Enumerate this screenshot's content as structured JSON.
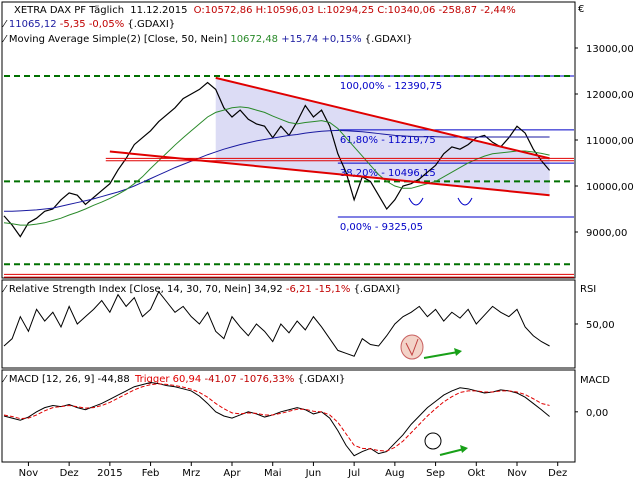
{
  "main_panel": {
    "header": {
      "instrument": "XETRA DAX PF",
      "period": "Täglich",
      "date": "11.12.2015",
      "open": "O:10572,86",
      "high": "H:10596,03",
      "low": "L:10294,25",
      "close": "C:10340,06",
      "change": "-258,87",
      "change_pct": "-2,44%"
    },
    "ma200": {
      "label": "Moving Average Simple [Close, 200, Nein]",
      "value": "11065,12",
      "change": "-5,35",
      "change_pct": "-0,05%",
      "symbol": "{.GDAXI}"
    },
    "ma50": {
      "label": "Moving Average Simple(2) [Close, 50, Nein]",
      "value": "10672,48",
      "change": "+15,74",
      "change_pct": "+0,15%",
      "symbol": "{.GDAXI}"
    },
    "currency": "€",
    "fib_labels": [
      "100,00% - 12390,75",
      "61,80% - 11219,75",
      "38,20% - 10496,15",
      "0,00% - 9325,05"
    ]
  },
  "rsi_panel": {
    "label": "Relative Strength Index [Close, 14, 30, 70, Nein]",
    "value": "34,92",
    "change": "-6,21",
    "change_pct": "-15,1%",
    "symbol": "{.GDAXI}",
    "tag": "RSI"
  },
  "macd_panel": {
    "label": "MACD [12, 26, 9]",
    "value": "-44,88",
    "trigger_label": "Trigger",
    "trigger_value": "60,94",
    "change": "-41,07",
    "change_pct": "-1076,33%",
    "symbol": "{.GDAXI}",
    "tag": "MACD"
  },
  "colors": {
    "price": "#000000",
    "ma200": "#1a1aa0",
    "ma50": "#2a8a2a",
    "channel": "#e00000",
    "channel_fill": "#dcdcf5",
    "fib": "#0000c8",
    "support": "#007000",
    "macd_trigger": "#e00000",
    "annotation_arrow": "#18a018"
  },
  "chart_data": [
    {
      "type": "line",
      "panel": "price",
      "ylim": [
        8000,
        14000
      ],
      "y_ticks": [
        "9000,00",
        "10000,00",
        "11000,00",
        "12000,00",
        "13000,00"
      ],
      "x_ticks": [
        "Nov",
        "Dez",
        "2015",
        "Feb",
        "Mrz",
        "Apr",
        "Mai",
        "Jun",
        "Jul",
        "Aug",
        "Sep",
        "Okt",
        "Nov",
        "Dez"
      ],
      "x_range": [
        0,
        14
      ],
      "series": [
        {
          "x": [
            0,
            0.2,
            0.4,
            0.6,
            0.8,
            1,
            1.2,
            1.4,
            1.6,
            1.8,
            2,
            2.2,
            2.4,
            2.6,
            2.8,
            3,
            3.2,
            3.4,
            3.6,
            3.8,
            4,
            4.2,
            4.4,
            4.6,
            4.8,
            5,
            5.2,
            5.4,
            5.6,
            5.8,
            6,
            6.2,
            6.4,
            6.6,
            6.8,
            7,
            7.2,
            7.4,
            7.6,
            7.8,
            8,
            8.2,
            8.4,
            8.6,
            8.8,
            9,
            9.2,
            9.4,
            9.6,
            9.8,
            10,
            10.2,
            10.4,
            10.6,
            10.8,
            11,
            11.2,
            11.4,
            11.6,
            11.8,
            12,
            12.2,
            12.4,
            12.6,
            12.8,
            13,
            13.2,
            13.4
          ],
          "values": [
            9350,
            9150,
            8900,
            9200,
            9300,
            9450,
            9500,
            9700,
            9850,
            9800,
            9600,
            9750,
            9900,
            10050,
            10350,
            10600,
            10900,
            11050,
            11200,
            11400,
            11550,
            11700,
            11900,
            12000,
            12100,
            12250,
            12100,
            11700,
            11500,
            11650,
            11450,
            11350,
            11300,
            11050,
            11300,
            11100,
            11400,
            11750,
            11500,
            11650,
            11300,
            10700,
            10300,
            9700,
            10200,
            10100,
            9800,
            9500,
            9700,
            10000,
            10050,
            10150,
            10300,
            10450,
            10700,
            10850,
            10800,
            10900,
            11050,
            11100,
            10950,
            10850,
            11050,
            11300,
            11150,
            10800,
            10550,
            10340
          ]
        },
        {
          "values": [
            9450,
            9450,
            9460,
            9470,
            9480,
            9500,
            9520,
            9560,
            9600,
            9640,
            9680,
            9720,
            9770,
            9820,
            9870,
            9930,
            10000,
            10080,
            10160,
            10240,
            10320,
            10400,
            10470,
            10540,
            10610,
            10680,
            10740,
            10800,
            10850,
            10900,
            10940,
            10980,
            11010,
            11040,
            11070,
            11100,
            11120,
            11150,
            11170,
            11190,
            11200,
            11210,
            11200,
            11190,
            11180,
            11160,
            11140,
            11120,
            11100,
            11090,
            11080,
            11070,
            11070,
            11070,
            11065,
            11065,
            11065,
            11065,
            11065,
            11065,
            11065,
            11065,
            11065,
            11065,
            11065,
            11065,
            11065,
            11065
          ]
        },
        {
          "values": [
            9200,
            9180,
            9150,
            9150,
            9170,
            9200,
            9250,
            9300,
            9370,
            9430,
            9500,
            9580,
            9650,
            9730,
            9820,
            9920,
            10050,
            10200,
            10380,
            10550,
            10720,
            10890,
            11050,
            11200,
            11350,
            11500,
            11600,
            11650,
            11700,
            11720,
            11700,
            11650,
            11600,
            11520,
            11450,
            11380,
            11350,
            11380,
            11400,
            11420,
            11380,
            11250,
            11050,
            10850,
            10650,
            10450,
            10250,
            10100,
            10000,
            9950,
            9950,
            10000,
            10050,
            10100,
            10200,
            10300,
            10400,
            10500,
            10580,
            10650,
            10700,
            10720,
            10740,
            10760,
            10760,
            10740,
            10710,
            10672
          ]
        }
      ],
      "channel": {
        "upper": [
          [
            5.2,
            12350
          ],
          [
            13.4,
            10600
          ]
        ],
        "lower": [
          [
            2.6,
            10750
          ],
          [
            13.4,
            9800
          ]
        ]
      },
      "fib_levels": [
        12390.75,
        11219.75,
        10496.15,
        9325.05
      ],
      "support_levels": [
        12390.75,
        10100,
        8300
      ]
    },
    {
      "type": "line",
      "panel": "rsi",
      "ylim": [
        20,
        80
      ],
      "y_ticks": [
        "50,00"
      ],
      "values": [
        35,
        40,
        55,
        45,
        60,
        52,
        58,
        48,
        62,
        50,
        55,
        60,
        66,
        58,
        70,
        62,
        68,
        55,
        60,
        72,
        65,
        58,
        62,
        55,
        50,
        58,
        45,
        40,
        55,
        48,
        42,
        50,
        45,
        38,
        50,
        44,
        52,
        46,
        55,
        48,
        40,
        32,
        30,
        28,
        40,
        36,
        35,
        42,
        50,
        55,
        58,
        62,
        55,
        60,
        52,
        58,
        54,
        60,
        50,
        56,
        62,
        58,
        55,
        60,
        48,
        42,
        38,
        35
      ]
    },
    {
      "type": "line",
      "panel": "macd",
      "y_ticks": [
        "0,00"
      ],
      "series": [
        {
          "values": [
            -40,
            -60,
            -80,
            -50,
            0,
            40,
            60,
            50,
            70,
            40,
            20,
            50,
            80,
            120,
            160,
            200,
            240,
            260,
            280,
            270,
            250,
            240,
            220,
            200,
            150,
            80,
            0,
            -40,
            -60,
            -30,
            0,
            -20,
            -50,
            -30,
            0,
            20,
            40,
            20,
            -20,
            0,
            -60,
            -180,
            -320,
            -420,
            -380,
            -350,
            -400,
            -380,
            -300,
            -220,
            -120,
            -40,
            40,
            100,
            160,
            200,
            230,
            220,
            200,
            180,
            190,
            210,
            200,
            180,
            140,
            80,
            20,
            -45
          ]
        },
        {
          "values": [
            -30,
            -45,
            -65,
            -60,
            -30,
            10,
            40,
            50,
            60,
            50,
            35,
            40,
            60,
            90,
            130,
            170,
            210,
            240,
            260,
            268,
            262,
            252,
            236,
            216,
            185,
            140,
            80,
            30,
            -10,
            -20,
            -10,
            -15,
            -30,
            -30,
            -15,
            5,
            25,
            25,
            5,
            0,
            -30,
            -100,
            -210,
            -320,
            -350,
            -355,
            -370,
            -375,
            -340,
            -280,
            -200,
            -120,
            -40,
            30,
            95,
            145,
            185,
            200,
            200,
            190,
            190,
            200,
            200,
            190,
            165,
            125,
            80,
            61
          ]
        }
      ]
    }
  ]
}
